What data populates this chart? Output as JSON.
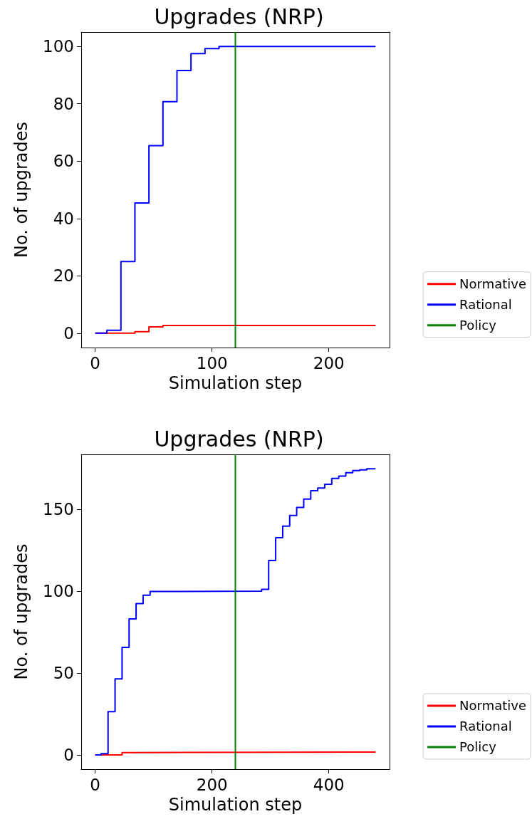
{
  "chart_data": [
    {
      "type": "step",
      "title": "Upgrades (NRP)",
      "xlabel": "Simulation step",
      "ylabel": "No. of upgrades",
      "xlim": [
        -12,
        252
      ],
      "ylim": [
        -5,
        105
      ],
      "xticks": [
        0,
        100,
        200
      ],
      "yticks": [
        0,
        20,
        40,
        60,
        80,
        100
      ],
      "grid": false,
      "legend": "right",
      "series": [
        {
          "name": "Normative",
          "color": "#ff0000",
          "x": [
            0,
            34,
            46,
            58,
            240
          ],
          "values": [
            0,
            0.5,
            2.2,
            2.7,
            2.7
          ]
        },
        {
          "name": "Rational",
          "color": "#0000ff",
          "x": [
            0,
            10,
            22,
            34,
            46,
            58,
            70,
            82,
            94,
            106,
            240
          ],
          "values": [
            0,
            1,
            25,
            45.4,
            65.4,
            80.7,
            91.6,
            97.5,
            99.2,
            100,
            100
          ]
        },
        {
          "name": "Policy",
          "color": "#008000",
          "x": [
            120,
            120
          ],
          "values": [
            -5,
            105
          ]
        }
      ]
    },
    {
      "type": "step",
      "title": "Upgrades (NRP)",
      "xlabel": "Simulation step",
      "ylabel": "No. of upgrades",
      "xlim": [
        -24,
        504
      ],
      "ylim": [
        -8.7,
        183.4
      ],
      "xticks": [
        0,
        200,
        400
      ],
      "yticks": [
        0,
        50,
        100,
        150
      ],
      "grid": false,
      "legend": "right",
      "series": [
        {
          "name": "Normative",
          "color": "#ff0000",
          "x": [
            0,
            46,
            58,
            480
          ],
          "values": [
            0,
            1.4,
            1.7,
            1.7
          ]
        },
        {
          "name": "Rational",
          "color": "#0000ff",
          "x": [
            0,
            10,
            22,
            34,
            46,
            58,
            70,
            82,
            94,
            106,
            285,
            297,
            309,
            321,
            333,
            345,
            357,
            369,
            381,
            393,
            405,
            417,
            429,
            441,
            453,
            465,
            480
          ],
          "values": [
            0,
            0.7,
            26.4,
            46.4,
            65.6,
            83,
            92.3,
            97.5,
            99.7,
            100,
            101,
            118.6,
            132.6,
            139.6,
            146.1,
            151,
            156.1,
            161.2,
            162.9,
            165.2,
            168.7,
            170.1,
            172.2,
            173.5,
            174,
            174.6,
            174.6
          ]
        },
        {
          "name": "Policy",
          "color": "#008000",
          "x": [
            240,
            240
          ],
          "values": [
            -8.7,
            183.4
          ]
        }
      ]
    }
  ]
}
